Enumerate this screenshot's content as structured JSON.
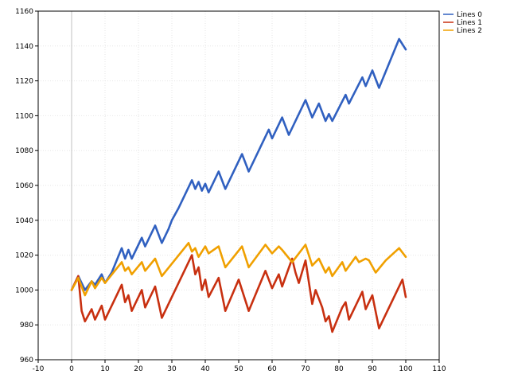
{
  "chart_data": {
    "type": "line",
    "xlim": [
      -10,
      110
    ],
    "ylim": [
      960,
      1160
    ],
    "x_ticks": [
      -10,
      0,
      10,
      20,
      30,
      40,
      50,
      60,
      70,
      80,
      90,
      100,
      110
    ],
    "y_ticks": [
      960,
      980,
      1000,
      1020,
      1040,
      1060,
      1080,
      1100,
      1120,
      1140,
      1160
    ],
    "grid": "dotted",
    "zero_line_x": 0,
    "legend_position": "top-right",
    "series": [
      {
        "name": "Lines 0",
        "color": "#3060c0",
        "points": [
          [
            0,
            1000
          ],
          [
            2,
            1008
          ],
          [
            4,
            1000
          ],
          [
            6,
            1005
          ],
          [
            7,
            1003
          ],
          [
            9,
            1009
          ],
          [
            10,
            1004
          ],
          [
            12,
            1010
          ],
          [
            15,
            1024
          ],
          [
            16,
            1018
          ],
          [
            17,
            1023
          ],
          [
            18,
            1018
          ],
          [
            20,
            1026
          ],
          [
            21,
            1030
          ],
          [
            22,
            1025
          ],
          [
            25,
            1037
          ],
          [
            27,
            1027
          ],
          [
            29,
            1035
          ],
          [
            30,
            1040
          ],
          [
            32,
            1047
          ],
          [
            36,
            1063
          ],
          [
            37,
            1058
          ],
          [
            38,
            1062
          ],
          [
            39,
            1057
          ],
          [
            40,
            1061
          ],
          [
            41,
            1056
          ],
          [
            44,
            1068
          ],
          [
            46,
            1058
          ],
          [
            51,
            1078
          ],
          [
            53,
            1068
          ],
          [
            57,
            1084
          ],
          [
            59,
            1092
          ],
          [
            60,
            1087
          ],
          [
            63,
            1099
          ],
          [
            65,
            1089
          ],
          [
            70,
            1109
          ],
          [
            72,
            1099
          ],
          [
            74,
            1107
          ],
          [
            76,
            1097
          ],
          [
            77,
            1101
          ],
          [
            78,
            1097
          ],
          [
            82,
            1112
          ],
          [
            83,
            1107
          ],
          [
            87,
            1122
          ],
          [
            88,
            1117
          ],
          [
            90,
            1126
          ],
          [
            92,
            1116
          ],
          [
            98,
            1144
          ],
          [
            100,
            1138
          ]
        ]
      },
      {
        "name": "Lines 1",
        "color": "#c83010",
        "points": [
          [
            0,
            1000
          ],
          [
            2,
            1008
          ],
          [
            3,
            988
          ],
          [
            4,
            982
          ],
          [
            6,
            989
          ],
          [
            7,
            983
          ],
          [
            9,
            991
          ],
          [
            10,
            983
          ],
          [
            15,
            1003
          ],
          [
            16,
            993
          ],
          [
            17,
            997
          ],
          [
            18,
            988
          ],
          [
            21,
            1000
          ],
          [
            22,
            990
          ],
          [
            25,
            1002
          ],
          [
            27,
            984
          ],
          [
            36,
            1020
          ],
          [
            37,
            1009
          ],
          [
            38,
            1013
          ],
          [
            39,
            1000
          ],
          [
            40,
            1006
          ],
          [
            41,
            996
          ],
          [
            44,
            1007
          ],
          [
            46,
            988
          ],
          [
            50,
            1006
          ],
          [
            53,
            988
          ],
          [
            58,
            1011
          ],
          [
            60,
            1001
          ],
          [
            62,
            1009
          ],
          [
            63,
            1002
          ],
          [
            66,
            1018
          ],
          [
            67,
            1010
          ],
          [
            68,
            1004
          ],
          [
            70,
            1017
          ],
          [
            72,
            992
          ],
          [
            73,
            1000
          ],
          [
            75,
            990
          ],
          [
            76,
            982
          ],
          [
            77,
            985
          ],
          [
            78,
            976
          ],
          [
            81,
            990
          ],
          [
            82,
            993
          ],
          [
            83,
            983
          ],
          [
            86,
            995
          ],
          [
            87,
            999
          ],
          [
            88,
            989
          ],
          [
            90,
            997
          ],
          [
            92,
            978
          ],
          [
            99,
            1006
          ],
          [
            100,
            996
          ]
        ]
      },
      {
        "name": "Lines 2",
        "color": "#f0a000",
        "points": [
          [
            0,
            1000
          ],
          [
            2,
            1007
          ],
          [
            4,
            997
          ],
          [
            6,
            1005
          ],
          [
            7,
            1001
          ],
          [
            9,
            1007
          ],
          [
            10,
            1004
          ],
          [
            15,
            1016
          ],
          [
            16,
            1011
          ],
          [
            17,
            1013
          ],
          [
            18,
            1009
          ],
          [
            21,
            1016
          ],
          [
            22,
            1011
          ],
          [
            25,
            1018
          ],
          [
            27,
            1008
          ],
          [
            35,
            1027
          ],
          [
            36,
            1022
          ],
          [
            37,
            1024
          ],
          [
            38,
            1019
          ],
          [
            40,
            1025
          ],
          [
            41,
            1021
          ],
          [
            44,
            1025
          ],
          [
            46,
            1013
          ],
          [
            51,
            1025
          ],
          [
            53,
            1013
          ],
          [
            58,
            1026
          ],
          [
            60,
            1021
          ],
          [
            62,
            1025
          ],
          [
            63,
            1023
          ],
          [
            66,
            1016
          ],
          [
            70,
            1026
          ],
          [
            72,
            1014
          ],
          [
            74,
            1018
          ],
          [
            76,
            1010
          ],
          [
            77,
            1013
          ],
          [
            78,
            1008
          ],
          [
            81,
            1016
          ],
          [
            82,
            1011
          ],
          [
            85,
            1019
          ],
          [
            86,
            1016
          ],
          [
            88,
            1018
          ],
          [
            89,
            1017
          ],
          [
            91,
            1010
          ],
          [
            94,
            1017
          ],
          [
            98,
            1024
          ],
          [
            100,
            1019
          ]
        ]
      }
    ]
  }
}
